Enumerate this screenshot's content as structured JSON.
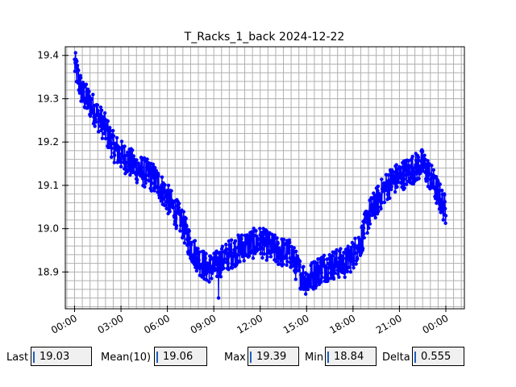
{
  "chart_data": {
    "type": "line",
    "title": "T_Racks_1_back 2024-12-22",
    "xlabel": "",
    "ylabel": "",
    "x_tick_labels": [
      "00:00",
      "03:00",
      "06:00",
      "09:00",
      "12:00",
      "15:00",
      "18:00",
      "21:00",
      "00:00"
    ],
    "x_ticks_hours": [
      0,
      3,
      6,
      9,
      12,
      15,
      18,
      21,
      24
    ],
    "xlim_hours": [
      -0.6,
      25.2
    ],
    "y_tick_labels": [
      "18.9",
      "19.0",
      "19.1",
      "19.2",
      "19.3",
      "19.4"
    ],
    "y_ticks": [
      18.9,
      19.0,
      19.1,
      19.2,
      19.3,
      19.4
    ],
    "ylim": [
      18.815,
      19.42
    ],
    "grid": true,
    "series": [
      {
        "name": "",
        "color": "#0000ff",
        "marker": "circle",
        "trend_hours": [
          0.0,
          0.5,
          1.0,
          1.5,
          2.0,
          2.5,
          3.0,
          4.0,
          5.0,
          5.5,
          6.0,
          6.5,
          7.0,
          7.5,
          8.0,
          8.5,
          9.0,
          10.0,
          11.0,
          12.0,
          13.0,
          14.0,
          14.5,
          15.0,
          16.0,
          17.0,
          17.5,
          18.0,
          18.5,
          19.0,
          20.0,
          20.5,
          21.0,
          21.5,
          22.0,
          22.5,
          23.0,
          23.5,
          24.0
        ],
        "trend_values": [
          19.38,
          19.31,
          19.29,
          19.26,
          19.23,
          19.19,
          19.17,
          19.14,
          19.12,
          19.1,
          19.07,
          19.04,
          19.01,
          18.96,
          18.93,
          18.91,
          18.91,
          18.94,
          18.96,
          18.97,
          18.95,
          18.94,
          18.9,
          18.88,
          18.91,
          18.92,
          18.92,
          18.94,
          18.97,
          19.03,
          19.09,
          19.11,
          19.12,
          19.13,
          19.14,
          19.15,
          19.12,
          19.08,
          19.04
        ],
        "noise": 0.035,
        "extremes": [
          {
            "hour": 0.1,
            "value": 19.39
          },
          {
            "hour": 9.3,
            "value": 18.84
          },
          {
            "hour": 24.0,
            "value": 19.03
          }
        ]
      }
    ]
  },
  "stats": {
    "last_label": "Last",
    "last_value": "19.03",
    "mean_label": "Mean(10)",
    "mean_value": "19.06",
    "max_label": "Max",
    "max_value": "19.39",
    "min_label": "Min",
    "min_value": "18.84",
    "delta_label": "Delta",
    "delta_value": "0.555"
  }
}
